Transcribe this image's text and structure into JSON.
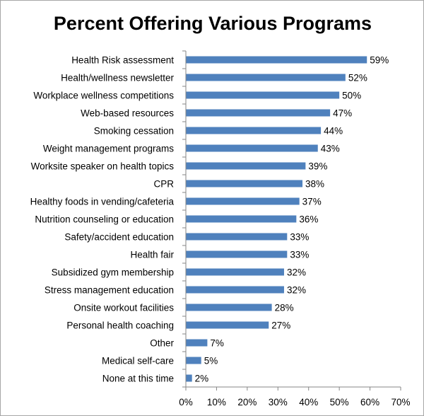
{
  "chart_data": {
    "type": "bar",
    "orientation": "horizontal",
    "title": "Percent Offering Various Programs",
    "categories": [
      "Health Risk assessment",
      "Health/wellness newsletter",
      "Workplace wellness competitions",
      "Web-based resources",
      "Smoking cessation",
      "Weight management programs",
      "Worksite speaker on health topics",
      "CPR",
      "Healthy foods in vending/cafeteria",
      "Nutrition counseling or education",
      "Safety/accident education",
      "Health fair",
      "Subsidized gym membership",
      "Stress management education",
      "Onsite workout facilities",
      "Personal health coaching",
      "Other",
      "Medical self-care",
      "None at this time"
    ],
    "values": [
      59,
      52,
      50,
      47,
      44,
      43,
      39,
      38,
      37,
      36,
      33,
      33,
      32,
      32,
      28,
      27,
      7,
      5,
      2
    ],
    "value_labels": [
      "59%",
      "52%",
      "50%",
      "47%",
      "44%",
      "43%",
      "39%",
      "38%",
      "37%",
      "36%",
      "33%",
      "33%",
      "32%",
      "32%",
      "28%",
      "27%",
      "7%",
      "5%",
      "2%"
    ],
    "xlim": [
      0,
      70
    ],
    "x_ticks": [
      0,
      10,
      20,
      30,
      40,
      50,
      60,
      70
    ],
    "x_tick_labels": [
      "0%",
      "10%",
      "20%",
      "30%",
      "40%",
      "50%",
      "60%",
      "70%"
    ],
    "xlabel": "",
    "ylabel": "",
    "grid": false,
    "legend": "none",
    "bar_color": "#4f81bd",
    "axis_color": "#868686"
  }
}
